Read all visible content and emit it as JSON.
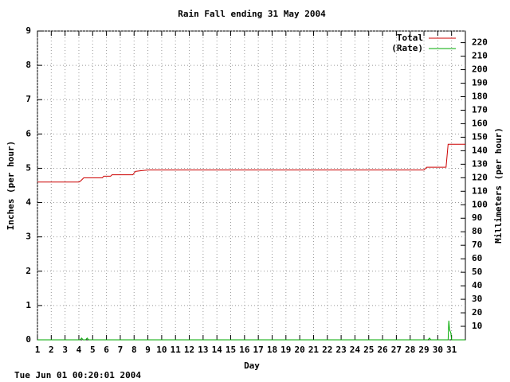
{
  "chart_data": {
    "type": "line",
    "title": "Rain Fall ending 31 May 2004",
    "xlabel": "Day",
    "ylabel": "Inches (per hour)",
    "y2label": "Millimeters (per hour)",
    "footer": "Tue Jun 01 00:20:01 2004",
    "xlim": [
      1,
      32
    ],
    "xticks": [
      1,
      2,
      3,
      4,
      5,
      6,
      7,
      8,
      9,
      10,
      11,
      12,
      13,
      14,
      15,
      16,
      17,
      18,
      19,
      20,
      21,
      22,
      23,
      24,
      25,
      26,
      27,
      28,
      29,
      30,
      31
    ],
    "ylim": [
      0,
      9
    ],
    "yticks": [
      0,
      1,
      2,
      3,
      4,
      5,
      6,
      7,
      8,
      9
    ],
    "y2lim": [
      0,
      228.6
    ],
    "y2ticks": [
      10,
      20,
      30,
      40,
      50,
      60,
      70,
      80,
      90,
      100,
      110,
      120,
      130,
      140,
      150,
      160,
      170,
      180,
      190,
      200,
      210,
      220
    ],
    "grid": true,
    "legend": "top-right",
    "series": [
      {
        "name": "Total",
        "color": "#cc0000",
        "x": [
          1,
          4,
          4.1,
          4.35,
          5,
          5.7,
          5.8,
          6.3,
          6.4,
          7.9,
          8.1,
          8.5,
          9,
          29,
          29.2,
          30.6,
          30.75,
          32
        ],
        "values": [
          4.6,
          4.6,
          4.62,
          4.72,
          4.72,
          4.72,
          4.77,
          4.77,
          4.81,
          4.81,
          4.91,
          4.93,
          4.95,
          4.95,
          5.03,
          5.03,
          5.7,
          5.7
        ]
      },
      {
        "name": "(Rate)",
        "color": "#00aa00",
        "x": [
          1,
          4.1,
          4.2,
          4.3,
          4.5,
          4.6,
          4.7,
          29.3,
          29.4,
          29.5,
          30.75,
          30.8,
          30.85,
          30.95,
          31,
          32
        ],
        "values": [
          0,
          0,
          0.05,
          0,
          0,
          0.05,
          0,
          0,
          0.05,
          0,
          0,
          0.56,
          0.3,
          0.2,
          0,
          0
        ]
      }
    ]
  }
}
